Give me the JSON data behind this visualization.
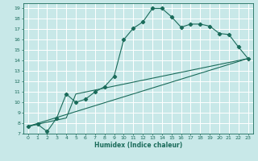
{
  "title": "",
  "xlabel": "Humidex (Indice chaleur)",
  "ylabel": "",
  "background_color": "#c8e8e8",
  "grid_color": "#ffffff",
  "line_color": "#1a6b5a",
  "xlim": [
    -0.5,
    23.5
  ],
  "ylim": [
    7,
    19.5
  ],
  "yticks": [
    7,
    8,
    9,
    10,
    11,
    12,
    13,
    14,
    15,
    16,
    17,
    18,
    19
  ],
  "xticks": [
    0,
    1,
    2,
    3,
    4,
    5,
    6,
    7,
    8,
    9,
    10,
    11,
    12,
    13,
    14,
    15,
    16,
    17,
    18,
    19,
    20,
    21,
    22,
    23
  ],
  "line1_x": [
    0,
    1,
    2,
    3,
    4,
    5,
    6,
    7,
    8,
    9,
    10,
    11,
    12,
    13,
    14,
    15,
    16,
    17,
    18,
    19,
    20,
    21,
    22,
    23
  ],
  "line1_y": [
    7.7,
    7.9,
    7.2,
    8.5,
    10.8,
    10.0,
    10.3,
    11.0,
    11.5,
    12.5,
    16.0,
    17.1,
    17.7,
    19.0,
    19.0,
    18.2,
    17.2,
    17.5,
    17.5,
    17.3,
    16.6,
    16.5,
    15.3,
    14.2
  ],
  "line2_x": [
    0,
    4,
    5,
    23
  ],
  "line2_y": [
    7.7,
    8.5,
    10.8,
    14.2
  ],
  "line3_x": [
    0,
    23
  ],
  "line3_y": [
    7.7,
    14.2
  ]
}
